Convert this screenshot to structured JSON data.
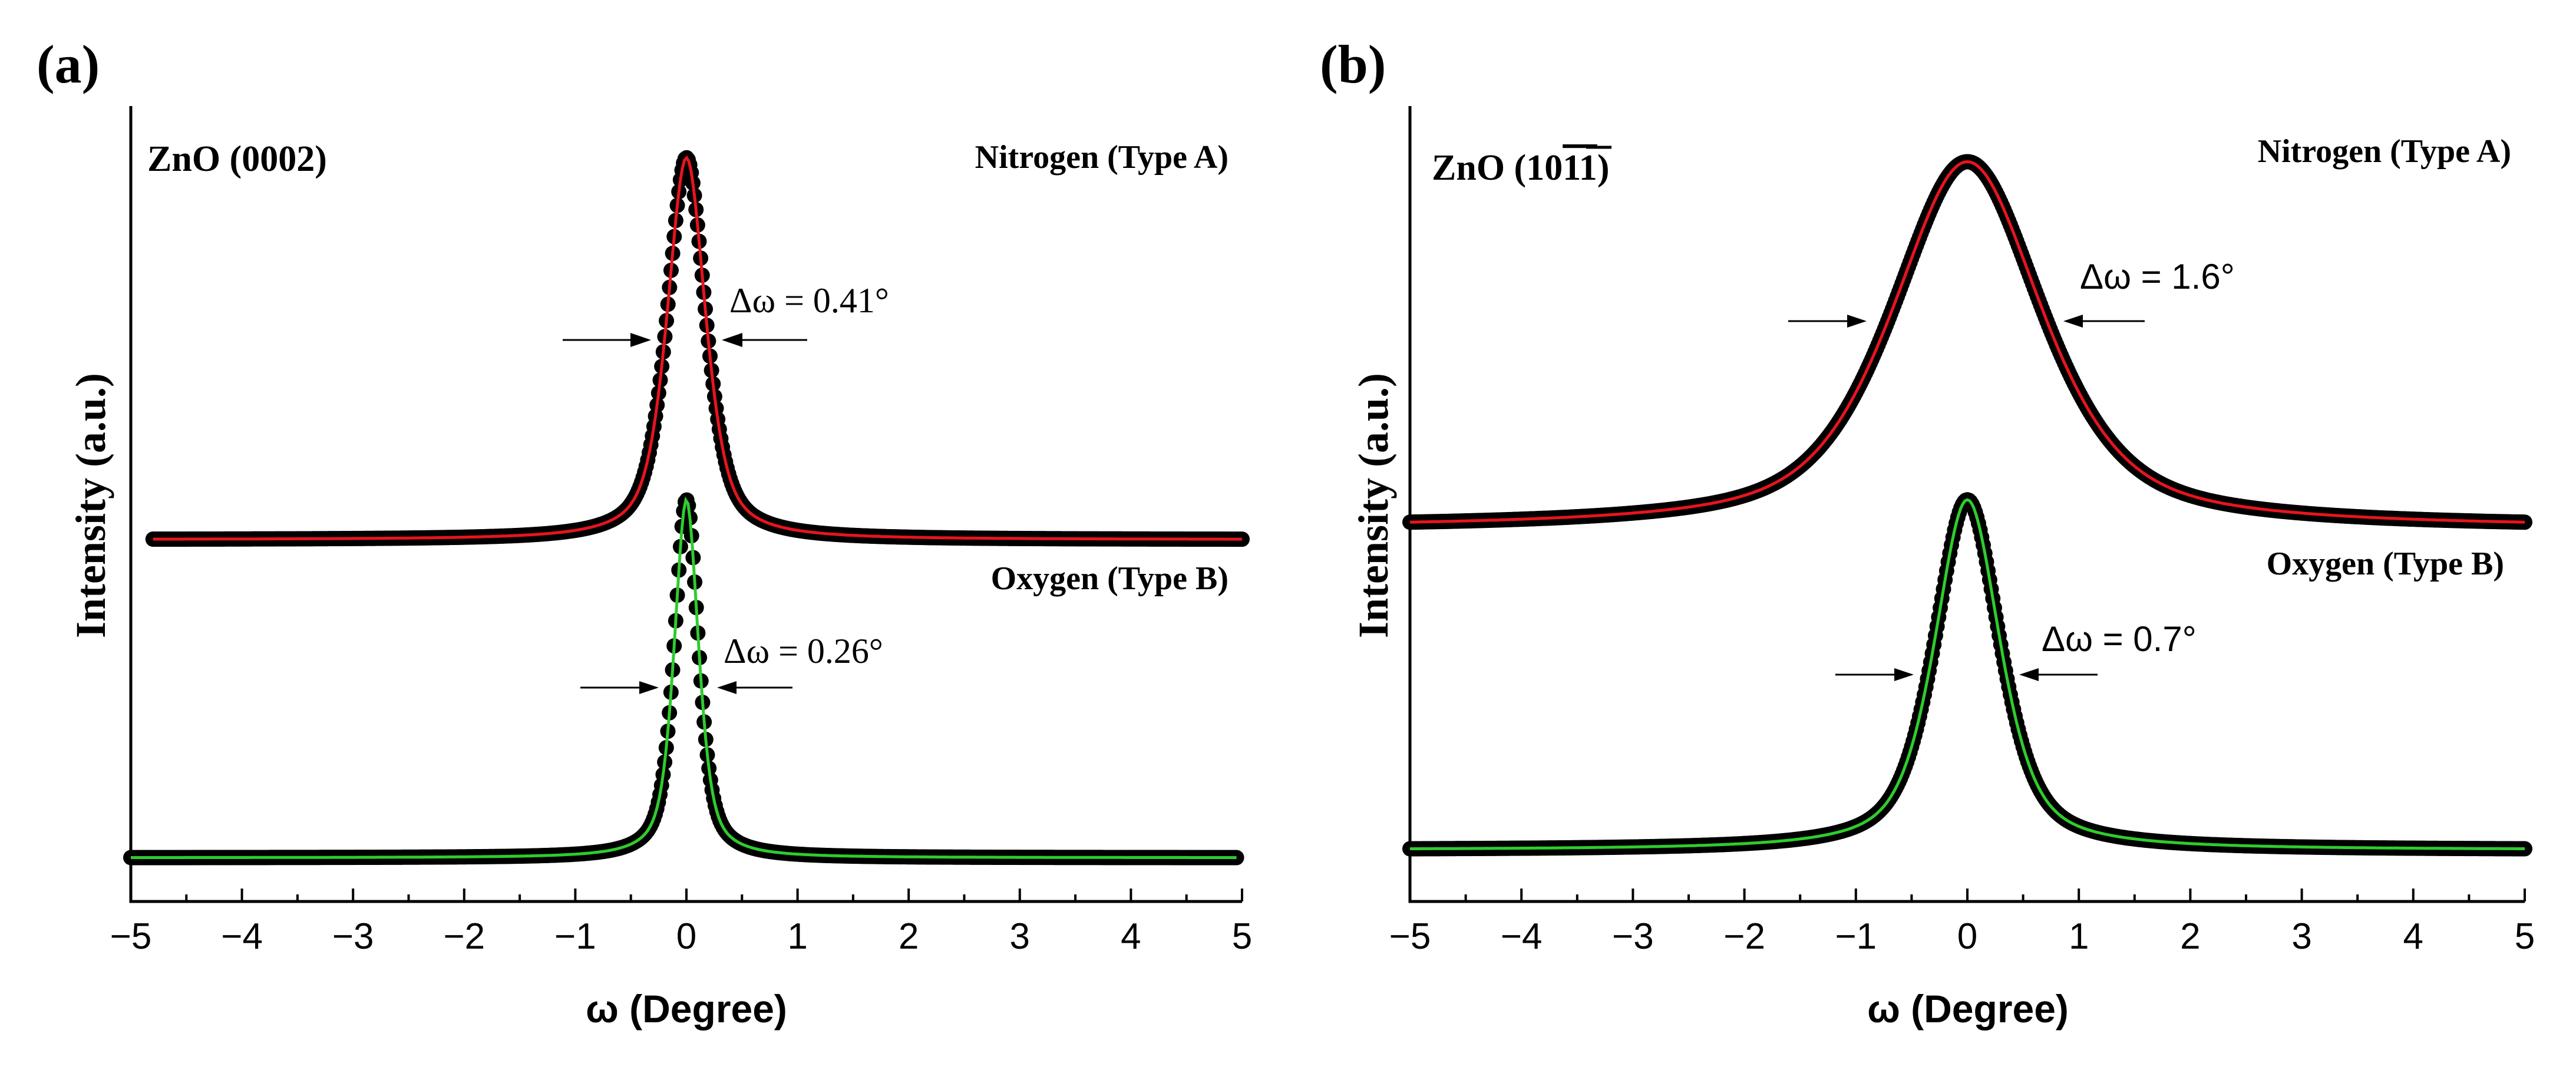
{
  "colors": {
    "nitrogen_fit": "#e8141e",
    "oxygen_fit": "#2ecc2e",
    "data_points": "#000000"
  },
  "chart_data": [
    {
      "type": "line",
      "panel_label": "(a)",
      "title": "ZnO (0002)",
      "xlabel": "ω (Degree)",
      "ylabel": "Intensity (a.u.)",
      "xlim": [
        -5,
        5
      ],
      "xticks": [
        -5,
        -4,
        -3,
        -2,
        -1,
        0,
        1,
        2,
        3,
        4,
        5
      ],
      "xtick_labels": [
        "−5",
        "−4",
        "−3",
        "−2",
        "−1",
        "0",
        "1",
        "2",
        "3",
        "4",
        "5"
      ],
      "ylim": [
        0,
        1
      ],
      "series": [
        {
          "name": "Nitrogen (Type A)",
          "fit_color": "#e8141e",
          "center": 0,
          "fwhm": 0.41,
          "baseline": 0.455,
          "amplitude": 0.48,
          "fwhm_label": "Δω = 0.41°",
          "x_range": [
            -4.8,
            5
          ]
        },
        {
          "name": "Oxygen (Type B)",
          "fit_color": "#2ecc2e",
          "center": 0,
          "fwhm": 0.26,
          "baseline": 0.055,
          "amplitude": 0.45,
          "fwhm_label": "Δω = 0.26°",
          "x_range": [
            -5,
            4.95
          ]
        }
      ]
    },
    {
      "type": "line",
      "panel_label": "(b)",
      "title": "ZnO (1011)",
      "title_base": "ZnO (10",
      "title_over": "11",
      "title_end": ")",
      "xlabel": "ω (Degree)",
      "ylabel": "Intensity (a.u.)",
      "xlim": [
        -5,
        5
      ],
      "xticks": [
        -5,
        -4,
        -3,
        -2,
        -1,
        0,
        1,
        2,
        3,
        4,
        5
      ],
      "xtick_labels": [
        "−5",
        "−4",
        "−3",
        "−2",
        "−1",
        "0",
        "1",
        "2",
        "3",
        "4",
        "5"
      ],
      "ylim": [
        0,
        1
      ],
      "series": [
        {
          "name": "Nitrogen (Type A)",
          "fit_color": "#e8141e",
          "center": 0,
          "fwhm": 1.6,
          "baseline": 0.47,
          "amplitude": 0.46,
          "fwhm_label": "Δω = 1.6°",
          "x_range": [
            -5,
            5
          ]
        },
        {
          "name": "Oxygen (Type B)",
          "fit_color": "#2ecc2e",
          "center": 0,
          "fwhm": 0.7,
          "baseline": 0.065,
          "amplitude": 0.44,
          "fwhm_label": "Δω = 0.7°",
          "x_range": [
            -5,
            5
          ]
        }
      ]
    }
  ]
}
